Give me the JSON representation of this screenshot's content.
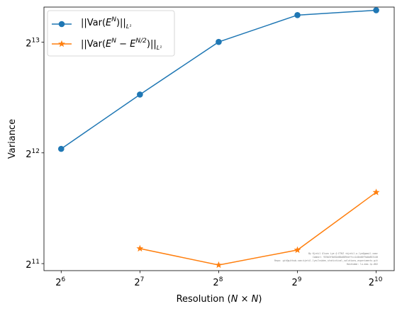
{
  "chart_data": {
    "type": "line",
    "x_scale": "log2",
    "y_scale": "log2",
    "x": [
      64,
      128,
      256,
      512,
      1024
    ],
    "xticks": [
      {
        "value": 64,
        "base": "2",
        "exp": "6"
      },
      {
        "value": 128,
        "base": "2",
        "exp": "7"
      },
      {
        "value": 256,
        "base": "2",
        "exp": "8"
      },
      {
        "value": 512,
        "base": "2",
        "exp": "9"
      },
      {
        "value": 1024,
        "base": "2",
        "exp": "10"
      }
    ],
    "yticks": [
      {
        "value": 2048,
        "base": "2",
        "exp": "11"
      },
      {
        "value": 4096,
        "base": "2",
        "exp": "12"
      },
      {
        "value": 8192,
        "base": "2",
        "exp": "13"
      }
    ],
    "xlim": [
      55,
      1200
    ],
    "ylim": [
      1960,
      10200
    ],
    "xlabel_parts": {
      "text": "Resolution (",
      "math": "N × N",
      "close": ")"
    },
    "ylabel": "Variance",
    "grid": false,
    "legend_position": "top-left",
    "series": [
      {
        "legend_parts": {
          "pre": "||Var(",
          "base": "E",
          "sup": "N",
          "post": ")||",
          "sub": "L¹"
        },
        "color": "#1f77b4",
        "marker": "circle",
        "values": [
          4200,
          5900,
          8200,
          9700,
          10000
        ]
      },
      {
        "legend_parts": {
          "pre": "||Var(",
          "base": "E",
          "sup": "N",
          "mid": " − ",
          "base2": "E",
          "sup2": "N/2",
          "post": ")||",
          "sub": "L¹"
        },
        "color": "#ff7f0e",
        "marker": "star",
        "values": [
          null,
          2250,
          2030,
          2230,
          3200
        ]
      }
    ],
    "watermark_lines": [
      "By Kjetil Olsen Lye @ ETHZ <kjetil.o.lye@gmail.com>",
      "Commit: 935b3f6e81e88a889eeffcc1c8ed8f9a4b853140",
      "Repo: git@github.com:kjetil-lye/leiden_statistical_solutions_experiments.git",
      "Hostname: lu-max-lp-002"
    ]
  }
}
